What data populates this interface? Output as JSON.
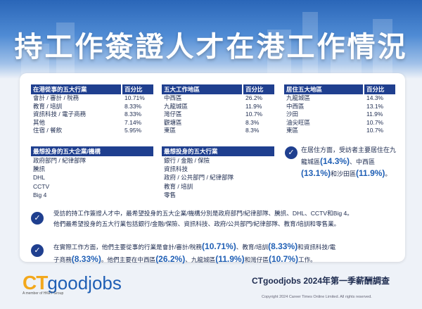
{
  "title": "持工作簽證人才在港工作情況",
  "tables": {
    "industries": {
      "header": [
        "在港從事的五大行業",
        "百分比"
      ],
      "rows": [
        [
          "會計 / 審計 / 稅務",
          "10.71%"
        ],
        [
          "教育 / 培訓",
          "8.33%"
        ],
        [
          "資訊科技 / 電子商務",
          "8.33%"
        ],
        [
          "其他",
          "7.14%"
        ],
        [
          "住宿 / 餐飲",
          "5.95%"
        ]
      ]
    },
    "work_districts": {
      "header": [
        "五大工作地區",
        "百分比"
      ],
      "rows": [
        [
          "中西區",
          "26.2%"
        ],
        [
          "九龍城區",
          "11.9%"
        ],
        [
          "灣仔區",
          "10.7%"
        ],
        [
          "觀塘區",
          "8.3%"
        ],
        [
          "東區",
          "8.3%"
        ]
      ]
    },
    "living_districts": {
      "header": [
        "居住五大地區",
        "百分比"
      ],
      "rows": [
        [
          "九龍城區",
          "14.3%"
        ],
        [
          "中西區",
          "13.1%"
        ],
        [
          "沙田",
          "11.9%"
        ],
        [
          "油尖旺區",
          "10.7%"
        ],
        [
          "東區",
          "10.7%"
        ]
      ]
    },
    "companies": {
      "header": "最想投身的五大企業/機構",
      "rows": [
        "政府部門 / 紀律部隊",
        "騰訊",
        "DHL",
        "CCTV",
        "Big 4"
      ]
    },
    "sectors": {
      "header": "最想投身的五大行業",
      "rows": [
        "銀行 / 金融 / 保險",
        "資訊科技",
        "政府 / 公共部門 / 紀律部隊",
        "教育 / 培訓",
        "零售"
      ]
    }
  },
  "living_note": {
    "t1": "在居住方面，受訪者主要居住在九龍城區",
    "v1": "(14.3%)",
    "t2": "、中西區",
    "v2": "(13.1%)",
    "t3": "和沙田區",
    "v3": "(11.9%)",
    "t4": "。"
  },
  "paragraph1": {
    "line1": "受訪的持工作簽證人才中，最希望投身的五大企業/機構分別是政府部門/紀律部隊、騰訊、DHL、CCTV和Big 4。",
    "line2": "他們最希望投身的五大行業包括銀行/金融/保險、資訊科技、政府/公共部門/紀律部隊、教育/培訓和零售業。"
  },
  "paragraph2": {
    "a": "在實際工作方面，他們主要從事的行業是會計/審計/稅務",
    "v1": "(10.71%)",
    "b": "、教育/培訓",
    "v2": "(8.33%)",
    "c": "和資訊科技/電",
    "d": "子商務",
    "v3": "(8.33%)",
    "e": "。他們主要在中西區",
    "v4": "(26.2%)",
    "f": "、九龍城區",
    "v5": "(11.9%)",
    "g": "和灣仔區",
    "v6": "(10.7%)",
    "h": "工作。"
  },
  "footer": {
    "logo_ct": "CT",
    "logo_good": "goodjobs",
    "logo_sub": "A member of HKET Group",
    "report": "CTgoodjobs 2024年第一季薪酬調查",
    "copyright": "Copyright 2024 Career Times Online Limited. All rights reserved."
  },
  "colors": {
    "header_blue": "#1f3f8f",
    "accent_blue": "#1f5fb5",
    "logo_orange": "#f3a81c"
  }
}
